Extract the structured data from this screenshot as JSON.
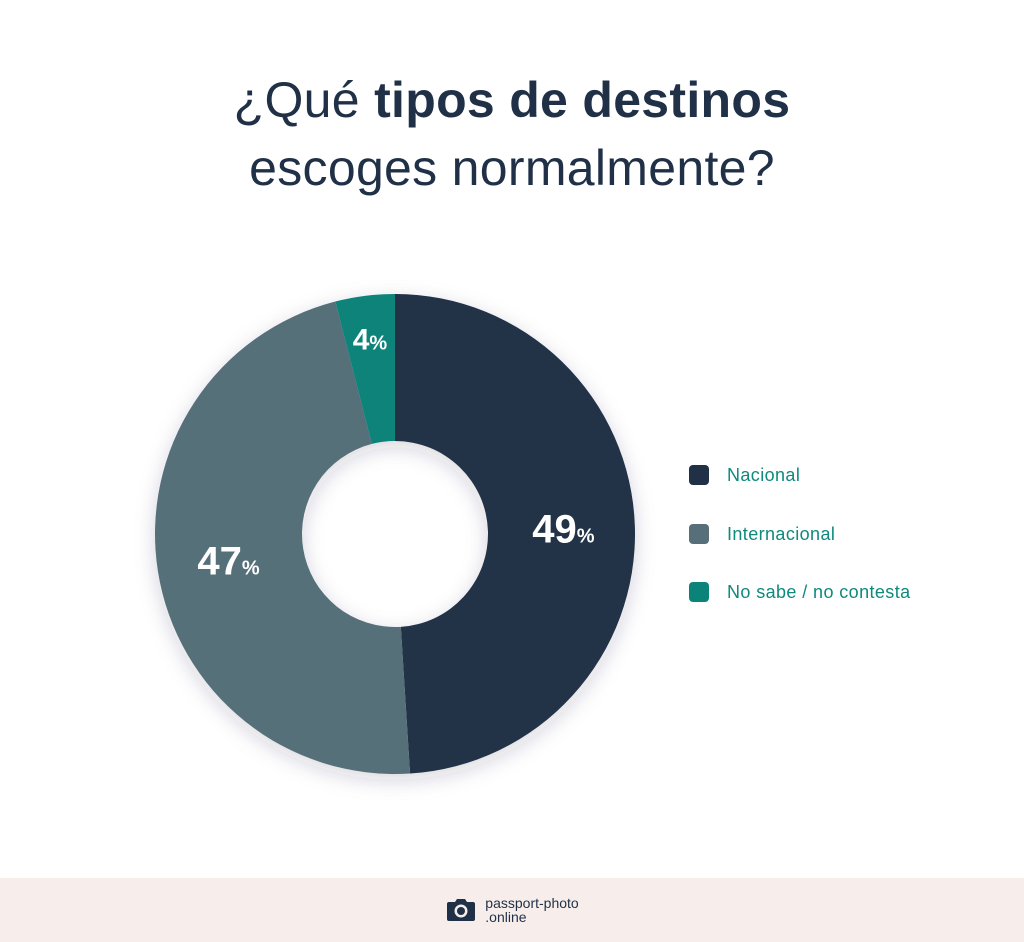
{
  "title": {
    "line1_prefix": "¿Qué ",
    "line1_bold": "tipos de destinos",
    "line2": "escoges normalmente?"
  },
  "chart_data": {
    "type": "pie",
    "title": "¿Qué tipos de destinos escoges normalmente?",
    "donut": true,
    "categories": [
      "Nacional",
      "Internacional",
      "No sabe / no contesta"
    ],
    "values": [
      49,
      47,
      4
    ],
    "unit": "%",
    "labels": [
      "49",
      "47",
      "4"
    ],
    "colors": [
      "#203047",
      "#566f79",
      "#0c8379"
    ],
    "legend_position": "right"
  },
  "footer": {
    "brand_line1": "passport-photo",
    "brand_line2": ".online"
  }
}
